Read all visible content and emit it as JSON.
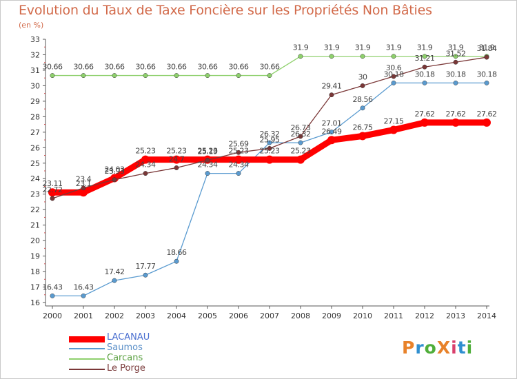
{
  "header": {
    "title": "Evolution du Taux de Taxe Foncière sur les Propriétés Non Bâties",
    "unit": "(en %)"
  },
  "logo": {
    "text": "ProXiti",
    "letters": [
      "P",
      "r",
      "o",
      "X",
      "i",
      "t",
      "i"
    ],
    "colors": [
      "#e8822a",
      "#2f8fd0",
      "#4fae3a",
      "#e8822a",
      "#d93f6c",
      "#2f8fd0",
      "#4fae3a"
    ]
  },
  "chart_data": {
    "type": "line",
    "title": "Evolution du Taux de Taxe Foncière sur les Propriétés Non Bâties",
    "ylabel": "(en %)",
    "x": [
      2000,
      2001,
      2002,
      2003,
      2004,
      2005,
      2006,
      2007,
      2008,
      2009,
      2010,
      2011,
      2012,
      2013,
      2014
    ],
    "ylim": [
      16,
      33
    ],
    "yticks": [
      16,
      17,
      18,
      19,
      20,
      21,
      22,
      23,
      24,
      25,
      26,
      27,
      28,
      29,
      30,
      31,
      32,
      33
    ],
    "grid": false,
    "legend_position": "bottom-left",
    "series": [
      {
        "name": "LACANAU",
        "color": "#ff0000",
        "values": [
          23.11,
          23.11,
          24.03,
          25.23,
          25.23,
          25.23,
          25.23,
          25.23,
          25.23,
          26.49,
          26.75,
          27.15,
          27.62,
          27.62,
          27.62
        ],
        "labels": [
          "23.11",
          "23.1",
          "24.03",
          "25.23",
          "25.23",
          "25.23",
          "25.23",
          "25.23",
          "25.23",
          "26.49",
          "26.75",
          "27.15",
          "27.62",
          "27.62",
          "27.62"
        ]
      },
      {
        "name": "Saumos",
        "color": "#5a9bd0",
        "values": [
          16.43,
          16.43,
          17.42,
          17.77,
          18.66,
          24.34,
          24.34,
          26.32,
          26.32,
          27.01,
          28.56,
          30.18,
          30.18,
          30.18,
          30.18
        ],
        "labels": [
          "16.43",
          "16.43",
          "17.42",
          "17.77",
          "18.66",
          "24.34",
          "24.34",
          "26.32",
          "26.32",
          "27.01",
          "28.56",
          "30.18",
          "30.18",
          "30.18",
          "30.18"
        ]
      },
      {
        "name": "Carcans",
        "color": "#8ed06c",
        "values": [
          30.66,
          30.66,
          30.66,
          30.66,
          30.66,
          30.66,
          30.66,
          30.66,
          31.9,
          31.9,
          31.9,
          31.9,
          31.9,
          31.9,
          31.9
        ],
        "labels": [
          "30.66",
          "30.66",
          "30.66",
          "30.66",
          "30.66",
          "30.66",
          "30.66",
          "30.66",
          "31.9",
          "31.9",
          "31.9",
          "31.9",
          "31.9",
          "31.9",
          "31.9"
        ]
      },
      {
        "name": "Le Porge",
        "color": "#7a3737",
        "values": [
          22.72,
          23.4,
          23.93,
          24.34,
          24.7,
          25.19,
          25.69,
          25.95,
          26.73,
          29.41,
          30,
          30.6,
          31.21,
          31.52,
          31.84
        ],
        "labels": [
          "22.72",
          "23.4",
          "23.93",
          "24.34",
          "24.7",
          "25.19",
          "25.69",
          "25.95",
          "26.73",
          "29.41",
          "30",
          "30.6",
          "31.21",
          "31.52",
          "31.84"
        ]
      }
    ]
  }
}
